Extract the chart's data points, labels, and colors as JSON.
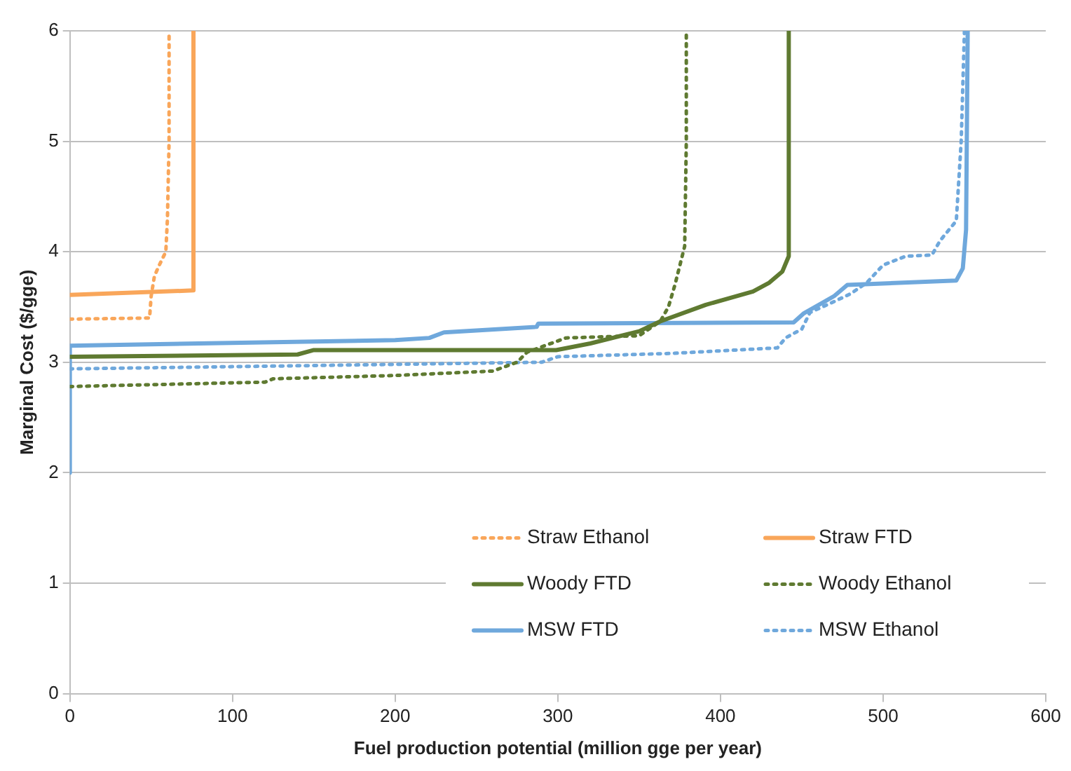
{
  "chart_data": {
    "type": "line",
    "xlabel": "Fuel production potential (million gge per year)",
    "ylabel": "Marginal Cost ($/gge)",
    "xlim": [
      0,
      600
    ],
    "xticks": [
      0,
      100,
      200,
      300,
      400,
      500,
      600
    ],
    "ylim": [
      0,
      6
    ],
    "yticks": [
      0,
      1,
      2,
      3,
      4,
      5,
      6
    ],
    "grid": "y",
    "legend": "bottom right",
    "marker": "none",
    "series": [
      {
        "name": "Straw Ethanol",
        "color": "#f9a65a",
        "line_style": "dotted",
        "x": [
          0,
          49,
          50,
          52,
          55,
          59,
          60,
          61,
          61
        ],
        "values": [
          3.39,
          3.4,
          3.6,
          3.78,
          3.88,
          4.0,
          4.3,
          5.0,
          6
        ]
      },
      {
        "name": "Straw FTD",
        "color": "#f9a65a",
        "line_style": "solid",
        "x": [
          0,
          76,
          76
        ],
        "values": [
          3.61,
          3.65,
          6
        ]
      },
      {
        "name": "Woody FTD",
        "color": "#5f7a31",
        "line_style": "solid",
        "x": [
          0,
          140,
          150,
          299,
          320,
          350,
          363,
          391,
          420,
          430,
          438,
          442,
          442
        ],
        "values": [
          3.05,
          3.07,
          3.11,
          3.11,
          3.17,
          3.28,
          3.37,
          3.52,
          3.64,
          3.72,
          3.82,
          3.96,
          6
        ]
      },
      {
        "name": "Woody Ethanol",
        "color": "#5f7a31",
        "line_style": "dotted",
        "x": [
          0,
          120,
          125,
          200,
          260,
          275,
          281,
          305,
          350,
          363,
          368,
          372,
          378,
          379,
          379
        ],
        "values": [
          2.78,
          2.82,
          2.85,
          2.88,
          2.92,
          3.0,
          3.09,
          3.22,
          3.24,
          3.37,
          3.5,
          3.7,
          4.05,
          5.0,
          6
        ]
      },
      {
        "name": "MSW FTD",
        "color": "#6fa8dc",
        "line_style": "solid",
        "x": [
          0,
          0,
          200,
          221,
          230,
          287,
          288,
          445,
          451,
          463,
          470,
          478,
          545,
          549,
          551,
          552
        ],
        "values": [
          2,
          3.15,
          3.2,
          3.22,
          3.27,
          3.32,
          3.35,
          3.36,
          3.44,
          3.54,
          3.6,
          3.7,
          3.74,
          3.85,
          4.2,
          6
        ]
      },
      {
        "name": "MSW Ethanol",
        "color": "#6fa8dc",
        "line_style": "dotted",
        "x": [
          0,
          150,
          290,
          300,
          370,
          435,
          440,
          450,
          455,
          470,
          480,
          490,
          500,
          514,
          530,
          535,
          545,
          548,
          550
        ],
        "values": [
          2.94,
          2.97,
          3.0,
          3.05,
          3.08,
          3.13,
          3.22,
          3.3,
          3.45,
          3.55,
          3.62,
          3.72,
          3.88,
          3.96,
          3.97,
          4.1,
          4.28,
          5.0,
          6
        ]
      }
    ]
  }
}
